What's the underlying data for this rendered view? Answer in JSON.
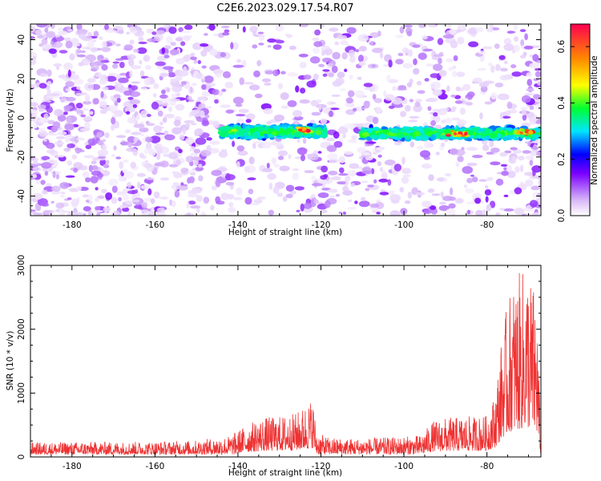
{
  "figure": {
    "title": "C2E6.2023.029.17.54.R07"
  },
  "chart_data": [
    {
      "type": "heatmap",
      "xlabel": "Height of straight line (km)",
      "ylabel": "Frequency (Hz)",
      "xlim": [
        -190,
        -67
      ],
      "ylim": [
        -50,
        48
      ],
      "xticks": [
        -180,
        -160,
        -140,
        -120,
        -100,
        -80
      ],
      "xtick_labels": [
        "-180",
        "-160",
        "-140",
        "-120",
        "-100",
        "-80"
      ],
      "yticks": [
        -40,
        -20,
        0,
        20,
        40
      ],
      "ytick_labels": [
        "-40",
        "-20",
        "0",
        "20",
        "40"
      ],
      "grid": false,
      "colorbar": {
        "label": "Normalized spectral amplitude",
        "range": [
          0,
          0.68
        ],
        "ticks": [
          0.0,
          0.2,
          0.4,
          0.6
        ],
        "tick_labels": [
          "0.0",
          "0.2",
          "0.4",
          "0.6"
        ],
        "colors": [
          "#ffffff",
          "#d8b8f8",
          "#7a00ff",
          "#0000ff",
          "#00e5ff",
          "#00ff30",
          "#ffff00",
          "#ff8800",
          "#ff0050"
        ]
      },
      "signal_band": [
        {
          "x_start": -144,
          "x_end": -119,
          "freq": -7
        },
        {
          "x_start": -110,
          "x_end": -67,
          "freq": -8
        }
      ],
      "signal_peaks": [
        {
          "x": -124,
          "freq": -6
        },
        {
          "x": -87,
          "freq": -8
        },
        {
          "x": -71,
          "freq": -7
        }
      ]
    },
    {
      "type": "line",
      "xlabel": "Height of straight line (km)",
      "ylabel": "SNR (10 * v/v)",
      "xlim": [
        -190,
        -67
      ],
      "ylim": [
        0,
        3000
      ],
      "xticks": [
        -180,
        -160,
        -140,
        -120,
        -100,
        -80
      ],
      "xtick_labels": [
        "-180",
        "-160",
        "-140",
        "-120",
        "-100",
        "-80"
      ],
      "yticks": [
        0,
        1000,
        2000,
        3000
      ],
      "ytick_labels": [
        "0",
        "1000",
        "2000",
        "3000"
      ],
      "grid": false,
      "series_color": "#ee3333",
      "envelope": {
        "x": [
          -190,
          -160,
          -150,
          -142,
          -138,
          -134,
          -130,
          -126,
          -124,
          -122,
          -121,
          -118,
          -112,
          -106,
          -100,
          -96,
          -93,
          -90,
          -86,
          -82,
          -80,
          -78,
          -76,
          -74,
          -72,
          -70,
          -68,
          -67
        ],
        "y": [
          230,
          240,
          260,
          330,
          500,
          620,
          640,
          690,
          800,
          930,
          380,
          300,
          290,
          300,
          320,
          340,
          560,
          610,
          630,
          640,
          650,
          1000,
          2100,
          2700,
          2900,
          3000,
          2500,
          250
        ]
      }
    }
  ]
}
